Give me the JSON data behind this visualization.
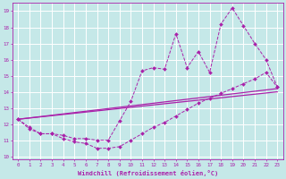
{
  "xlabel": "Windchill (Refroidissement éolien,°C)",
  "xlim": [
    -0.5,
    23.5
  ],
  "ylim": [
    9.8,
    19.5
  ],
  "yticks": [
    10,
    11,
    12,
    13,
    14,
    15,
    16,
    17,
    18,
    19
  ],
  "xticks": [
    0,
    1,
    2,
    3,
    4,
    5,
    6,
    7,
    8,
    9,
    10,
    11,
    12,
    13,
    14,
    15,
    16,
    17,
    18,
    19,
    20,
    21,
    22,
    23
  ],
  "bg_color": "#c5e8e8",
  "grid_color": "#ffffff",
  "line_color": "#aa22aa",
  "series": [
    {
      "x": [
        0,
        1,
        2,
        3,
        4,
        5,
        6,
        7,
        8,
        9,
        10,
        11,
        12,
        13,
        14,
        15,
        16,
        17,
        18,
        19,
        20,
        21,
        22,
        23
      ],
      "y": [
        12.3,
        11.7,
        11.4,
        11.4,
        11.1,
        10.9,
        10.8,
        10.5,
        10.5,
        10.6,
        11.0,
        11.4,
        11.8,
        12.1,
        12.5,
        12.9,
        13.3,
        13.6,
        13.9,
        14.2,
        14.5,
        14.8,
        15.2,
        14.3
      ]
    },
    {
      "x": [
        0,
        1,
        2,
        3,
        4,
        5,
        6,
        7,
        8,
        9,
        10,
        11,
        12,
        13,
        14,
        15,
        16,
        17,
        18,
        19,
        20,
        21,
        22,
        23
      ],
      "y": [
        12.3,
        11.8,
        11.4,
        11.4,
        11.3,
        11.1,
        11.1,
        11.0,
        11.0,
        12.2,
        13.4,
        15.3,
        15.5,
        15.4,
        17.6,
        15.5,
        16.5,
        15.2,
        18.2,
        19.2,
        18.1,
        17.0,
        16.0,
        14.3
      ]
    },
    {
      "x": [
        0,
        23
      ],
      "y": [
        12.3,
        14.2
      ]
    },
    {
      "x": [
        0,
        23
      ],
      "y": [
        12.3,
        14.0
      ]
    }
  ]
}
